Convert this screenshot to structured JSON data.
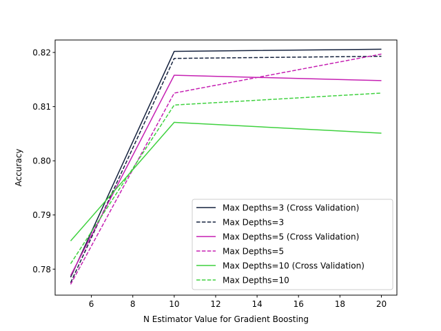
{
  "chart_data": {
    "type": "line",
    "xlabel": "N Estimator Value for Gradient Boosting",
    "ylabel": "Accuracy",
    "xlim": [
      4.25,
      20.75
    ],
    "ylim": [
      0.7752,
      0.8223
    ],
    "xticks": [
      6,
      8,
      10,
      12,
      14,
      16,
      18,
      20
    ],
    "yticks": [
      0.78,
      0.79,
      0.8,
      0.81,
      0.82
    ],
    "grid": false,
    "legend_position": "bottom-right",
    "x": [
      5,
      10,
      20
    ],
    "series": [
      {
        "name": "Max Depths=3 (Cross Validation)",
        "values": [
          0.7785,
          0.8202,
          0.8206
        ],
        "color": "#14213d",
        "dash": "solid"
      },
      {
        "name": "Max Depths=3",
        "values": [
          0.7775,
          0.8189,
          0.8193
        ],
        "color": "#14213d",
        "dash": "dashed"
      },
      {
        "name": "Max Depths=5 (Cross Validation)",
        "values": [
          0.7788,
          0.8158,
          0.8148
        ],
        "color": "#c51fb2",
        "dash": "solid"
      },
      {
        "name": "Max Depths=5",
        "values": [
          0.7772,
          0.8125,
          0.8197
        ],
        "color": "#c51fb2",
        "dash": "dashed"
      },
      {
        "name": "Max Depths=10 (Cross Validation)",
        "values": [
          0.7852,
          0.8071,
          0.8051
        ],
        "color": "#3ed13e",
        "dash": "solid"
      },
      {
        "name": "Max Depths=10",
        "values": [
          0.781,
          0.8103,
          0.8125
        ],
        "color": "#3ed13e",
        "dash": "dashed"
      }
    ]
  }
}
